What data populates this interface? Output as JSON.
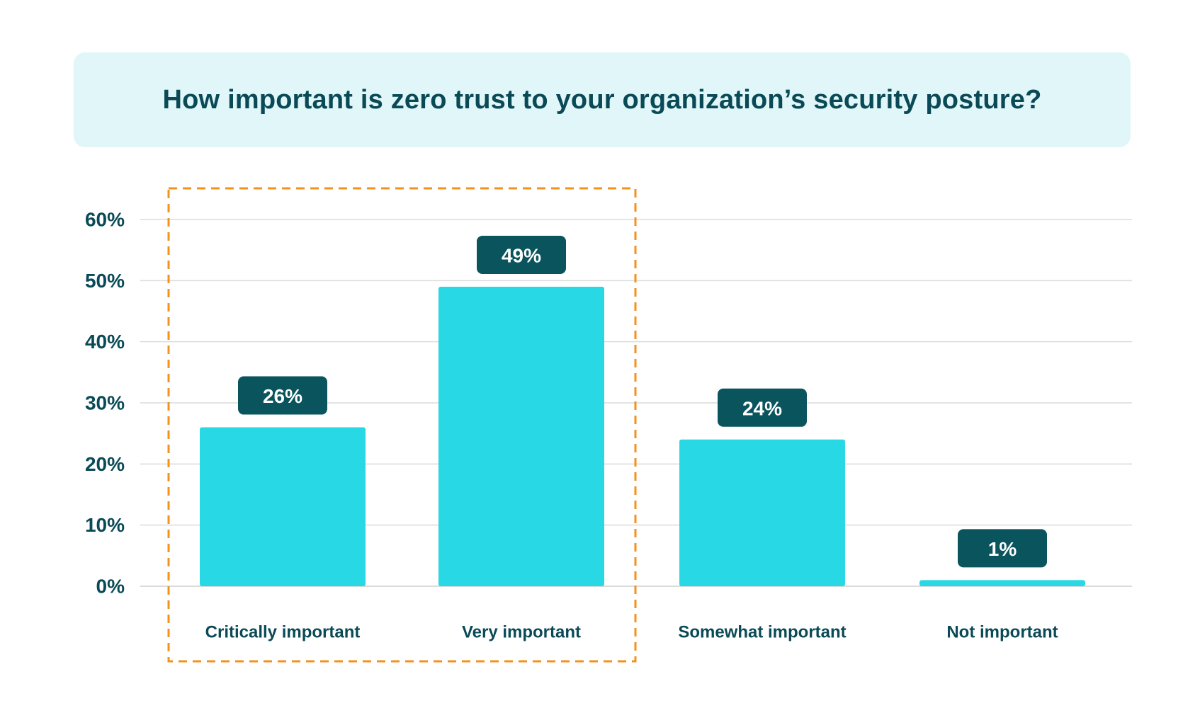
{
  "chart_data": {
    "type": "bar",
    "title": "How important is zero trust to your organization’s security posture?",
    "categories": [
      "Critically important",
      "Very important",
      "Somewhat important",
      "Not important"
    ],
    "values": [
      26,
      49,
      24,
      1
    ],
    "value_labels": [
      "26%",
      "49%",
      "24%",
      "1%"
    ],
    "ylim": [
      0,
      60
    ],
    "y_ticks": [
      0,
      10,
      20,
      30,
      40,
      50,
      60
    ],
    "y_tick_labels": [
      "0%",
      "10%",
      "20%",
      "30%",
      "40%",
      "50%",
      "60%"
    ],
    "grid": true,
    "highlight": {
      "categories": [
        "Critically important",
        "Very important"
      ],
      "style": "dashed-outline",
      "color": "#f4921e"
    },
    "colors": {
      "bar": "#28d8e4",
      "value_badge": "#0a545e",
      "value_text": "#ffffff",
      "text": "#0a4a56",
      "grid": "#dcdcdc",
      "title_background": "#e0f6f8"
    }
  }
}
